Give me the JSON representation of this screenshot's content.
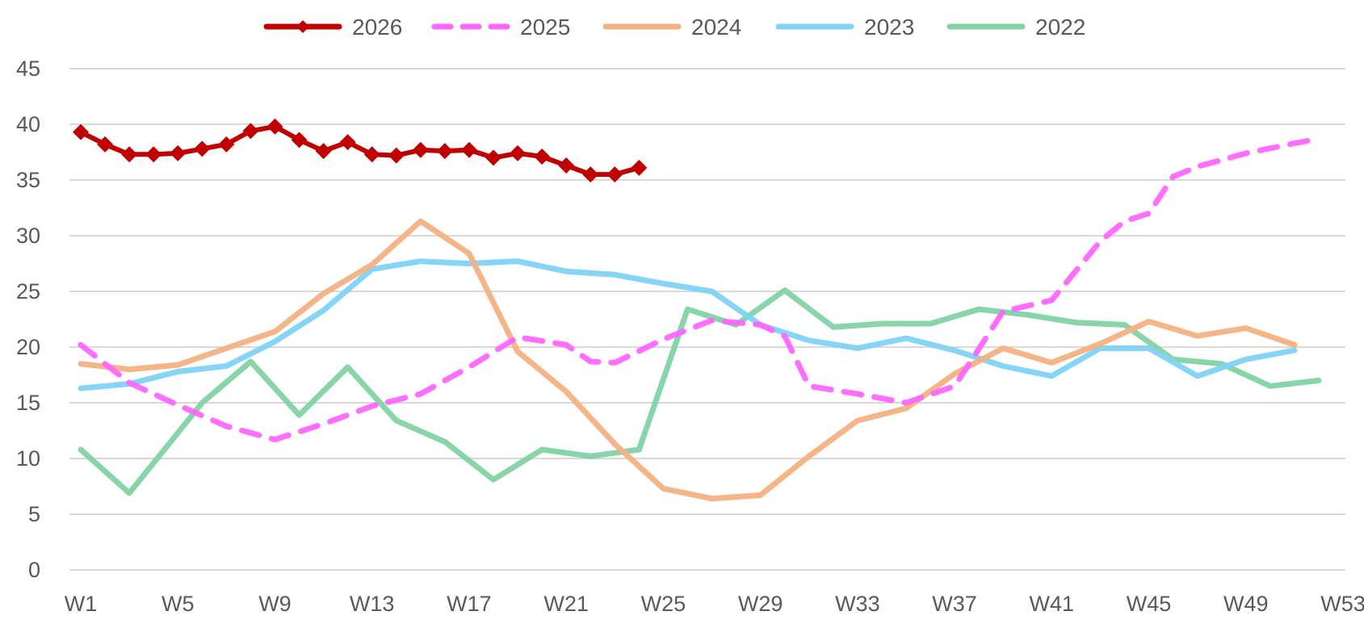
{
  "chart_data": {
    "type": "line",
    "title": "",
    "xlabel": "",
    "ylabel": "",
    "ylim": [
      0,
      45
    ],
    "yticks": [
      0,
      5,
      10,
      15,
      20,
      25,
      30,
      35,
      40,
      45
    ],
    "xlim": [
      1,
      53
    ],
    "x_tick_labels": [
      "W1",
      "W5",
      "W9",
      "W13",
      "W17",
      "W21",
      "W25",
      "W29",
      "W33",
      "W37",
      "W41",
      "W45",
      "W49",
      "W53"
    ],
    "x_tick_weeks": [
      1,
      5,
      9,
      13,
      17,
      21,
      25,
      29,
      33,
      37,
      41,
      45,
      49,
      53
    ],
    "grid": true,
    "legend_position": "top-center",
    "series": [
      {
        "name": "2026",
        "color": "#C00000",
        "style": "solid-diamond",
        "x": [
          1,
          2,
          3,
          4,
          5,
          6,
          7,
          8,
          9,
          10,
          11,
          12,
          13,
          14,
          15,
          16,
          17,
          18,
          19,
          20,
          21,
          22,
          23,
          24
        ],
        "values": [
          39.3,
          38.2,
          37.3,
          37.3,
          37.4,
          37.8,
          38.2,
          39.4,
          39.8,
          38.6,
          37.6,
          38.4,
          37.3,
          37.2,
          37.7,
          37.6,
          37.7,
          37.0,
          37.4,
          37.1,
          36.3,
          35.5,
          35.5,
          36.1
        ]
      },
      {
        "name": "2025",
        "color": "#FF66FF",
        "style": "dashed",
        "x": [
          1,
          3,
          5,
          7,
          9,
          11,
          13,
          15,
          17,
          19,
          21,
          22,
          23,
          25,
          27,
          29,
          30,
          31,
          33,
          35,
          37,
          39,
          41,
          43,
          44,
          45,
          46,
          47,
          49,
          51,
          52
        ],
        "values": [
          20.2,
          16.8,
          14.8,
          12.9,
          11.7,
          13.1,
          14.7,
          15.8,
          18.2,
          20.9,
          20.2,
          18.7,
          18.6,
          20.7,
          22.4,
          22.0,
          21.0,
          16.5,
          15.8,
          15.0,
          16.5,
          23.2,
          24.2,
          29.5,
          31.3,
          32.0,
          35.3,
          36.2,
          37.4,
          38.3,
          38.7
        ]
      },
      {
        "name": "2024",
        "color": "#F4B183",
        "style": "solid",
        "x": [
          1,
          3,
          5,
          7,
          9,
          11,
          13,
          15,
          17,
          19,
          21,
          23,
          25,
          27,
          29,
          31,
          33,
          35,
          37,
          39,
          41,
          43,
          45,
          47,
          49,
          51
        ],
        "values": [
          18.5,
          18.0,
          18.4,
          19.9,
          21.4,
          24.8,
          27.4,
          31.3,
          28.4,
          19.6,
          16.0,
          11.3,
          7.3,
          6.4,
          6.7,
          10.2,
          13.4,
          14.5,
          17.6,
          19.9,
          18.6,
          20.3,
          22.3,
          21.0,
          21.7,
          20.2
        ]
      },
      {
        "name": "2023",
        "color": "#7FD3F5",
        "style": "solid",
        "x": [
          1,
          3,
          5,
          7,
          9,
          11,
          13,
          15,
          17,
          19,
          21,
          23,
          25,
          27,
          29,
          31,
          33,
          35,
          37,
          39,
          41,
          43,
          45,
          47,
          49,
          51
        ],
        "values": [
          16.3,
          16.7,
          17.8,
          18.3,
          20.5,
          23.3,
          27.0,
          27.7,
          27.5,
          27.7,
          26.8,
          26.5,
          25.7,
          25.0,
          22.0,
          20.6,
          19.9,
          20.8,
          19.7,
          18.3,
          17.4,
          19.9,
          19.9,
          17.4,
          18.9,
          19.7
        ]
      },
      {
        "name": "2022",
        "color": "#82D3A4",
        "style": "solid",
        "x": [
          1,
          3,
          5,
          6,
          8,
          10,
          12,
          14,
          16,
          18,
          20,
          22,
          24,
          26,
          28,
          30,
          32,
          34,
          36,
          38,
          40,
          42,
          44,
          46,
          48,
          50,
          52
        ],
        "values": [
          10.8,
          6.9,
          12.3,
          15.0,
          18.7,
          13.9,
          18.2,
          13.4,
          11.5,
          8.1,
          10.8,
          10.2,
          10.8,
          23.4,
          22.0,
          25.1,
          21.8,
          22.1,
          22.1,
          23.4,
          22.9,
          22.2,
          22.0,
          18.9,
          18.5,
          16.5,
          17.0
        ]
      }
    ]
  }
}
